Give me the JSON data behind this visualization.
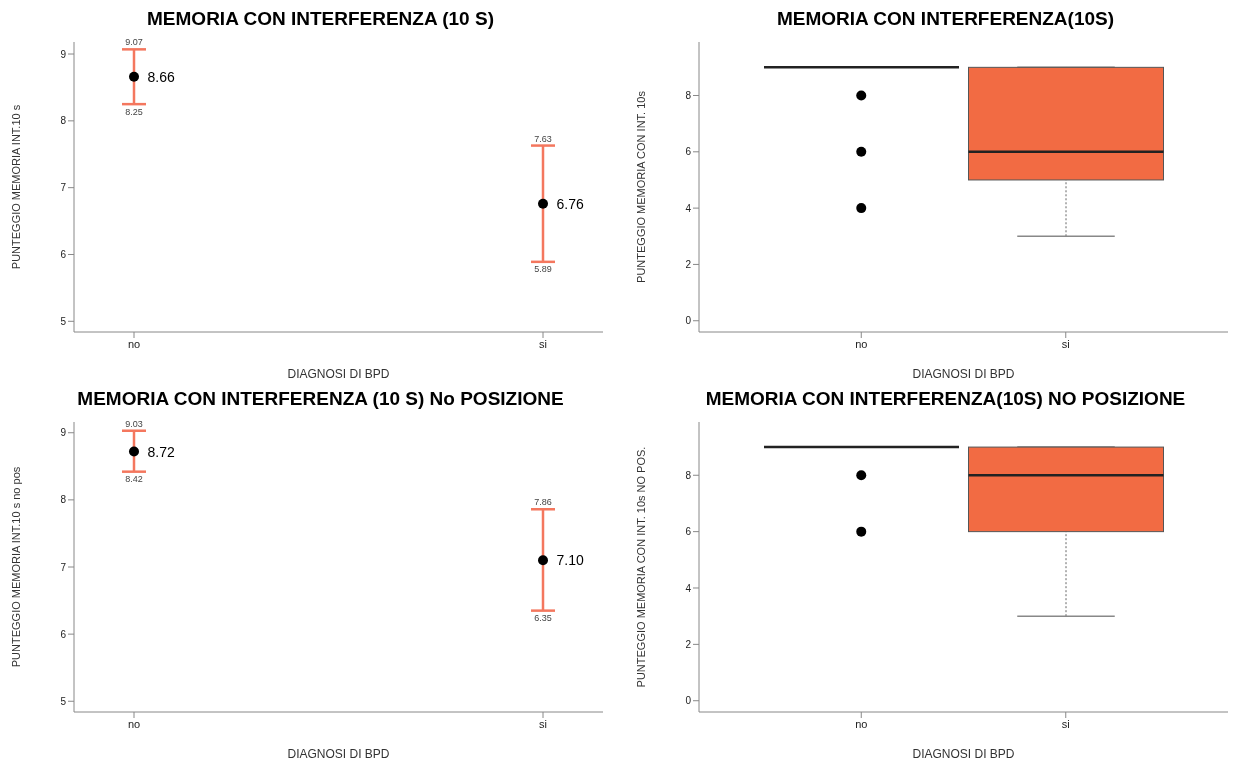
{
  "chart_data": [
    {
      "type": "scatter",
      "title": "MEMORIA CON INTERFERENZA (10 S)",
      "xlabel": "DIAGNOSI DI BPD",
      "ylabel": "PUNTEGGIO MEMORIA INT.10 s",
      "categories": [
        "no",
        "si"
      ],
      "values": [
        8.66,
        6.76
      ],
      "errors": [
        [
          8.25,
          9.07
        ],
        [
          5.89,
          7.63
        ]
      ],
      "color": "#000000",
      "marker": "circle",
      "data_labels": true,
      "ylim": [
        4.84,
        9.18
      ],
      "yticks": [
        5,
        6,
        7,
        8,
        9
      ],
      "annotations": [
        {
          "text": "9.07",
          "x": "no",
          "y": 9.07
        },
        {
          "text": "8.25",
          "x": "no",
          "y": 8.25
        },
        {
          "text": "7.63",
          "x": "si",
          "y": 7.63
        },
        {
          "text": "5.89",
          "x": "si",
          "y": 5.89
        }
      ]
    },
    {
      "type": "box",
      "title": "MEMORIA CON INTERFERENZA(10S)",
      "xlabel": "DIAGNOSI DI BPD",
      "ylabel": "PUNTEGGIO MEMORIA CON INT. 10s",
      "categories": [
        "no",
        "si"
      ],
      "colors": [
        "#222222",
        "#f26b43"
      ],
      "ylim": [
        -0.4,
        9.9
      ],
      "yticks": [
        0,
        2,
        4,
        6,
        8
      ],
      "boxes": [
        {
          "low": 9,
          "q1": 9,
          "median": 9,
          "q3": 9,
          "high": 9,
          "outliers": [
            8,
            6,
            4
          ]
        },
        {
          "low": 3,
          "q1": 5,
          "median": 6,
          "q3": 9,
          "high": 9
        }
      ]
    },
    {
      "type": "scatter",
      "title": "MEMORIA CON INTERFERENZA (10 S) No POSIZIONE",
      "xlabel": "DIAGNOSI DI BPD",
      "ylabel": "PUNTEGGIO MEMORIA INT.10 s no pos",
      "categories": [
        "no",
        "si"
      ],
      "values": [
        8.72,
        7.1
      ],
      "errors": [
        [
          8.42,
          9.03
        ],
        [
          6.35,
          7.86
        ]
      ],
      "color": "#000000",
      "marker": "circle",
      "data_labels": true,
      "ylim": [
        4.84,
        9.16
      ],
      "yticks": [
        5,
        6,
        7,
        8,
        9
      ],
      "value_labels": [
        "8.72",
        "7.10"
      ],
      "annotations": [
        {
          "text": "9.03",
          "x": "no",
          "y": 9.03
        },
        {
          "text": "8.42",
          "x": "no",
          "y": 8.42
        },
        {
          "text": "7.86",
          "x": "si",
          "y": 7.86
        },
        {
          "text": "6.35",
          "x": "si",
          "y": 6.35
        }
      ]
    },
    {
      "type": "box",
      "title": "MEMORIA CON INTERFERENZA(10S) NO POSIZIONE",
      "xlabel": "DIAGNOSI DI BPD",
      "ylabel": "PUNTEGGIO MEMORIA CON INT. 10s NO POS.",
      "categories": [
        "no",
        "si"
      ],
      "colors": [
        "#222222",
        "#f26b43"
      ],
      "ylim": [
        -0.4,
        9.89
      ],
      "yticks": [
        0,
        2,
        4,
        6,
        8
      ],
      "boxes": [
        {
          "low": 9,
          "q1": 9,
          "median": 9,
          "q3": 9,
          "high": 9,
          "outliers": [
            8,
            6
          ]
        },
        {
          "low": 3,
          "q1": 6,
          "median": 8,
          "q3": 9,
          "high": 9
        }
      ]
    }
  ]
}
